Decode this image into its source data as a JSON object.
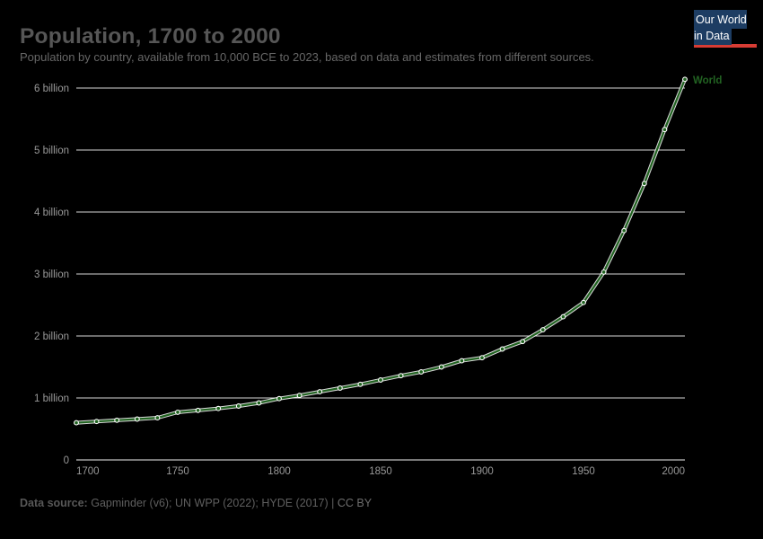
{
  "header": {
    "title": "Population, 1700 to 2000",
    "subtitle": "Population by country, available from 10,000 BCE to 2023, based on data and estimates from different sources."
  },
  "logo": {
    "line1": "Our World",
    "line2": "in Data",
    "navy": "#1d3d63",
    "red": "#d73c34"
  },
  "footer": {
    "source_label": "Data source:",
    "source_text": "Gapminder (v6); UN WPP (2022); HYDE (2017)",
    "separator": "|",
    "license": "CC BY"
  },
  "chart_data": {
    "type": "line",
    "title": "Population, 1700 to 2000",
    "xlabel": "",
    "ylabel": "",
    "unit": "billion people",
    "grid": "horizontal",
    "legend_position": "end-of-line",
    "xlim": [
      1700,
      2000
    ],
    "ylim": [
      0,
      6
    ],
    "x_ticks": [
      "1700",
      "1750",
      "1800",
      "1850",
      "1900",
      "1950",
      "2000"
    ],
    "y_ticks": [
      {
        "value": 0,
        "label": "0"
      },
      {
        "value": 1,
        "label": "1 billion"
      },
      {
        "value": 2,
        "label": "2 billion"
      },
      {
        "value": 3,
        "label": "3 billion"
      },
      {
        "value": 4,
        "label": "4 billion"
      },
      {
        "value": 5,
        "label": "5 billion"
      },
      {
        "value": 6,
        "label": "6 billion"
      }
    ],
    "colors": {
      "line": "#226322",
      "halo": "#ffffff",
      "grid": "#d9d9d9",
      "axis": "#a0a0a0",
      "tick_text": "#999999"
    },
    "series": [
      {
        "name": "World",
        "color": "#226322",
        "points": [
          [
            1700,
            0.6
          ],
          [
            1710,
            0.62
          ],
          [
            1720,
            0.64
          ],
          [
            1730,
            0.66
          ],
          [
            1740,
            0.68
          ],
          [
            1750,
            0.77
          ],
          [
            1760,
            0.8
          ],
          [
            1770,
            0.83
          ],
          [
            1780,
            0.87
          ],
          [
            1790,
            0.92
          ],
          [
            1800,
            0.99
          ],
          [
            1810,
            1.04
          ],
          [
            1820,
            1.1
          ],
          [
            1830,
            1.16
          ],
          [
            1840,
            1.22
          ],
          [
            1850,
            1.29
          ],
          [
            1860,
            1.36
          ],
          [
            1870,
            1.42
          ],
          [
            1880,
            1.5
          ],
          [
            1890,
            1.6
          ],
          [
            1900,
            1.65
          ],
          [
            1910,
            1.79
          ],
          [
            1920,
            1.91
          ],
          [
            1930,
            2.1
          ],
          [
            1940,
            2.31
          ],
          [
            1950,
            2.54
          ],
          [
            1960,
            3.03
          ],
          [
            1970,
            3.7
          ],
          [
            1980,
            4.46
          ],
          [
            1990,
            5.33
          ],
          [
            2000,
            6.14
          ]
        ]
      }
    ]
  }
}
